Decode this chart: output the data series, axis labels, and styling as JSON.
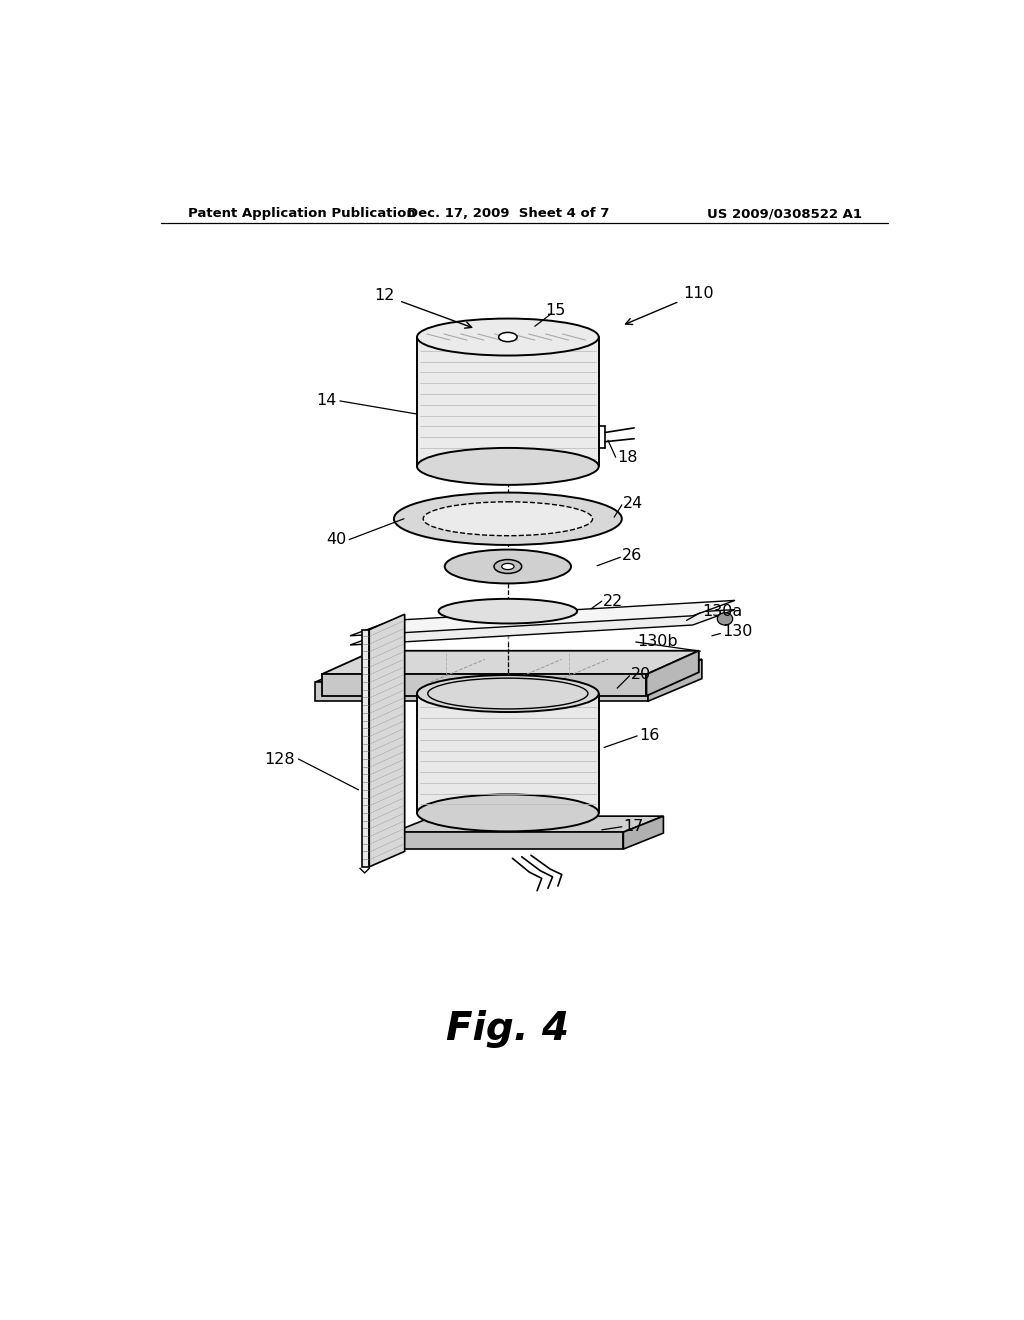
{
  "background_color": "#ffffff",
  "header_left": "Patent Application Publication",
  "header_center": "Dec. 17, 2009  Sheet 4 of 7",
  "header_right": "US 2009/0308522 A1",
  "fig_label": "Fig. 4"
}
